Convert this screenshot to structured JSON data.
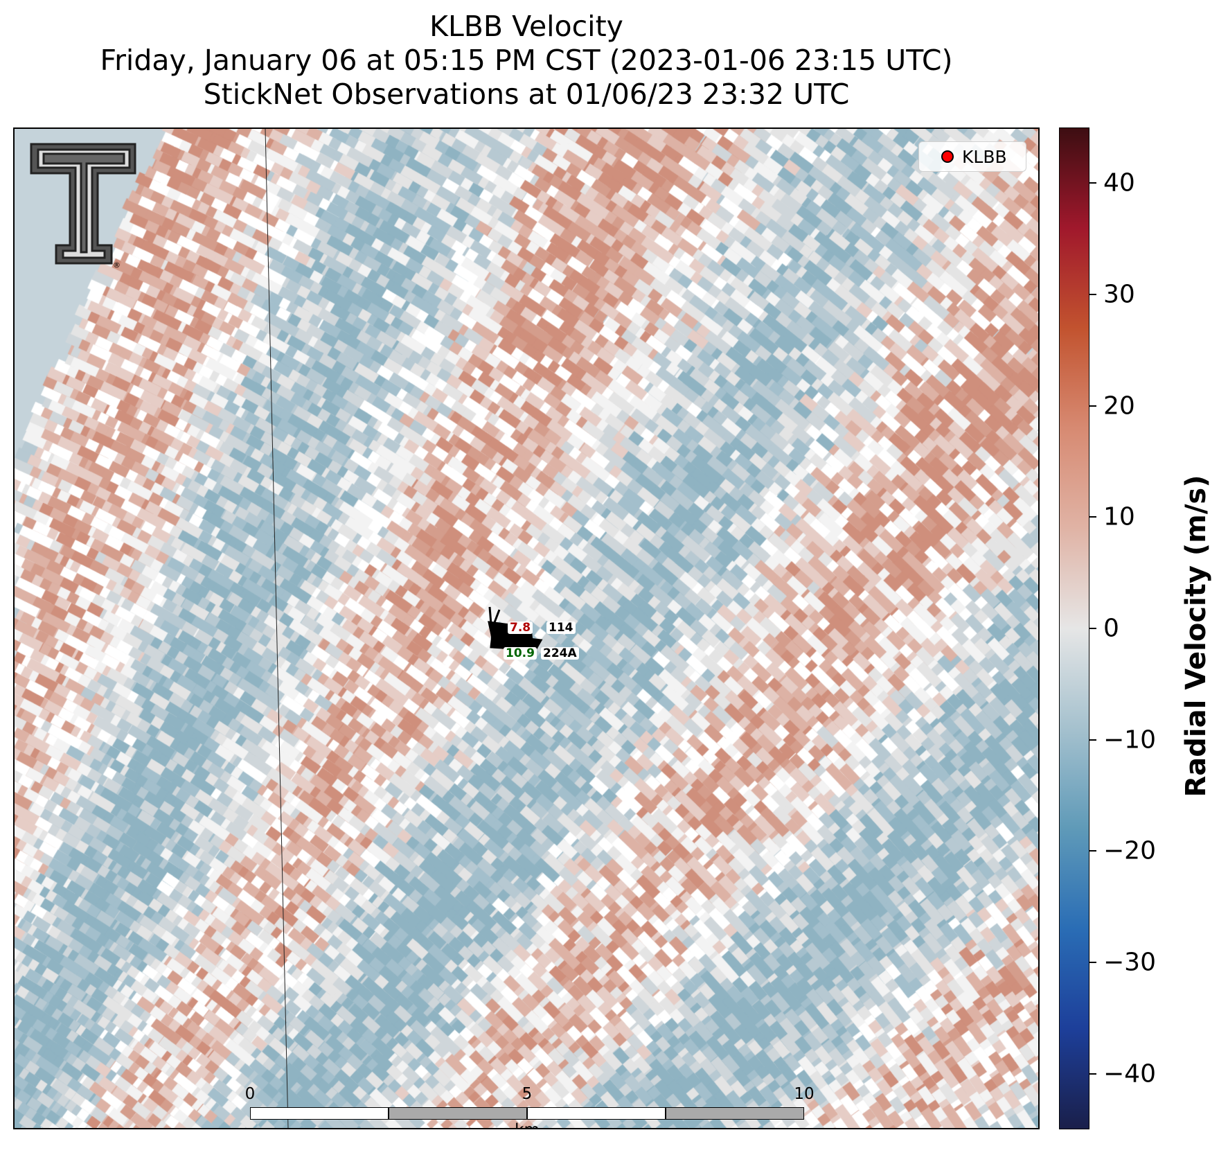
{
  "title": {
    "line1": "KLBB Velocity",
    "line2": "Friday, January 06 at 05:15 PM CST (2023-01-06 23:15 UTC)",
    "line3": "StickNet Observations at 01/06/23 23:32 UTC"
  },
  "logo": {
    "icon": "texas-tech-double-t-logo",
    "registered_mark": "®"
  },
  "legend": {
    "label": "KLBB",
    "marker_color": "#ff0000"
  },
  "stations": [
    {
      "id": "114",
      "temperature": "7.8",
      "temp_color": "#b00000"
    },
    {
      "id": "224A",
      "dewpoint": "10.9",
      "dew_color": "#006400"
    }
  ],
  "scalebar": {
    "ticks": [
      "0",
      "5",
      "10"
    ],
    "unit": "km"
  },
  "colorbar": {
    "label": "Radial Velocity (m/s)",
    "ticks": [
      "40",
      "30",
      "20",
      "10",
      "0",
      "−10",
      "−20",
      "−30",
      "−40"
    ],
    "range": [
      -45,
      45
    ],
    "colormap": [
      "#1a1f4a",
      "#1d3f9a",
      "#2a6db5",
      "#5f9ab8",
      "#a5c1ce",
      "#e6e6e6",
      "#e0b3a5",
      "#d78a72",
      "#c2532f",
      "#a0182c",
      "#3d0e12"
    ]
  }
}
